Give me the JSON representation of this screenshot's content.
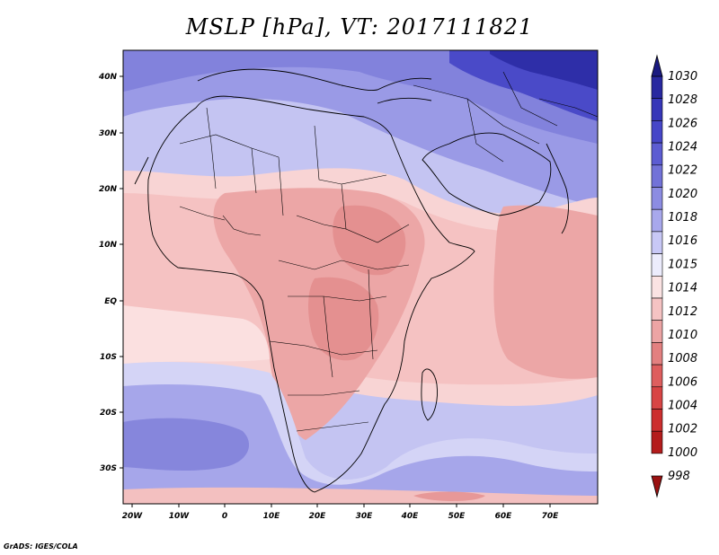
{
  "title": "MSLP [hPa], VT: 2017111821",
  "credit": "GrADS: IGES/COLA",
  "map": {
    "lon_labels": [
      "20W",
      "10W",
      "0",
      "10E",
      "20E",
      "30E",
      "40E",
      "50E",
      "60E",
      "70E"
    ],
    "lat_labels": [
      "40N",
      "30N",
      "20N",
      "10N",
      "EQ",
      "10S",
      "20S",
      "30S"
    ],
    "variable": "mean sea level pressure",
    "units": "hPa"
  },
  "colorbar": {
    "levels": [
      "1030",
      "1028",
      "1026",
      "1024",
      "1022",
      "1020",
      "1018",
      "1016",
      "1015",
      "1014",
      "1012",
      "1010",
      "1008",
      "1006",
      "1004",
      "1002",
      "1000",
      "998"
    ],
    "colors": [
      "#1a1a80",
      "#2828a0",
      "#3636b8",
      "#4646c8",
      "#5c5cd2",
      "#7272d8",
      "#8c8ce2",
      "#a8a8ec",
      "#c8c8f6",
      "#ececfc",
      "#fbe3e3",
      "#f5c3c3",
      "#eca4a4",
      "#e38080",
      "#de5e5e",
      "#d84444",
      "#cc2e2e",
      "#b41c1c",
      "#9a1212"
    ]
  },
  "colors": {
    "ocean_low": "#b0b0ee",
    "land_neutral": "#f6c8c8",
    "land_low": "#e8a0a0",
    "high_north": "#3030a8",
    "boundary": "#000000"
  }
}
